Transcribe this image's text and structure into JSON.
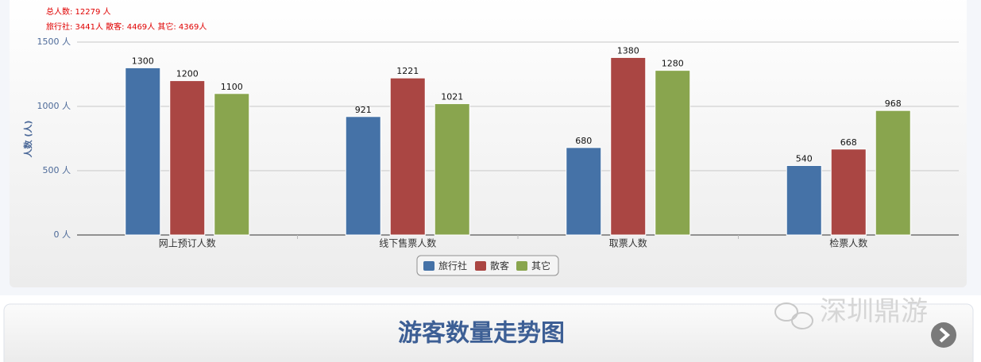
{
  "header": {
    "total": "总人数: 12279 人",
    "breakdown": "旅行社: 3441人 散客: 4469人 其它: 4369人"
  },
  "chart_data": {
    "type": "bar",
    "y_label": "人数 (人)",
    "categories": [
      "网上预订人数",
      "线下售票人数",
      "取票人数",
      "检票人数"
    ],
    "series": [
      {
        "name": "旅行社",
        "color": "#4572a7",
        "values": [
          1300,
          921,
          680,
          540
        ]
      },
      {
        "name": "散客",
        "color": "#aa4643",
        "values": [
          1200,
          1221,
          1380,
          668
        ]
      },
      {
        "name": "其它",
        "color": "#89a54e",
        "values": [
          1100,
          1021,
          1280,
          968
        ]
      }
    ],
    "ylim": [
      0,
      1500
    ],
    "yticks": [
      {
        "value": 0,
        "label": "0 人"
      },
      {
        "value": 500,
        "label": "500 人"
      },
      {
        "value": 1000,
        "label": "1000 人"
      },
      {
        "value": 1500,
        "label": "1500 人"
      }
    ],
    "grid": true,
    "legend": "bottom"
  },
  "section": {
    "title": "游客数量走势图",
    "watermark": "深圳鼎游"
  }
}
